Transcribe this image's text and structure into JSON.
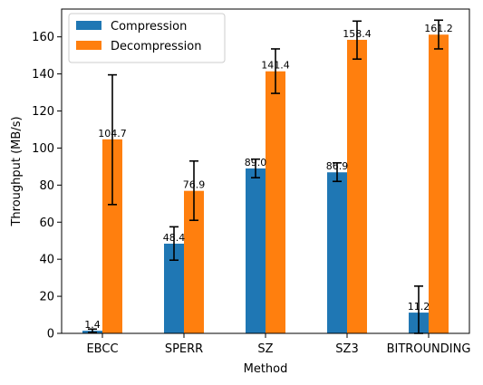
{
  "chart_data": {
    "type": "bar",
    "title": "",
    "xlabel": "Method",
    "ylabel": "Throughput (MB/s)",
    "categories": [
      "EBCC",
      "SPERR",
      "SZ",
      "SZ3",
      "BITROUNDING"
    ],
    "ylim": [
      0,
      175
    ],
    "yticks": [
      0,
      20,
      40,
      60,
      80,
      100,
      120,
      140,
      160
    ],
    "grid": false,
    "legend_position": "top-left",
    "series": [
      {
        "name": "Compression",
        "color": "#1f77b4",
        "values": [
          1.4,
          48.4,
          89.0,
          86.9,
          11.2
        ],
        "labels": [
          "1.4",
          "48.4",
          "89.0",
          "86.9",
          "11.2"
        ],
        "err_low": [
          0.5,
          39.5,
          84.0,
          82.0,
          0.0
        ],
        "err_high": [
          2.3,
          57.5,
          94.0,
          92.0,
          25.5
        ]
      },
      {
        "name": "Decompression",
        "color": "#ff7f0e",
        "values": [
          104.7,
          76.9,
          141.4,
          158.4,
          161.2
        ],
        "labels": [
          "104.7",
          "76.9",
          "141.4",
          "158.4",
          "161.2"
        ],
        "err_low": [
          69.5,
          61.0,
          129.5,
          148.0,
          153.5
        ],
        "err_high": [
          139.5,
          93.0,
          153.5,
          168.5,
          169.0
        ]
      }
    ]
  }
}
